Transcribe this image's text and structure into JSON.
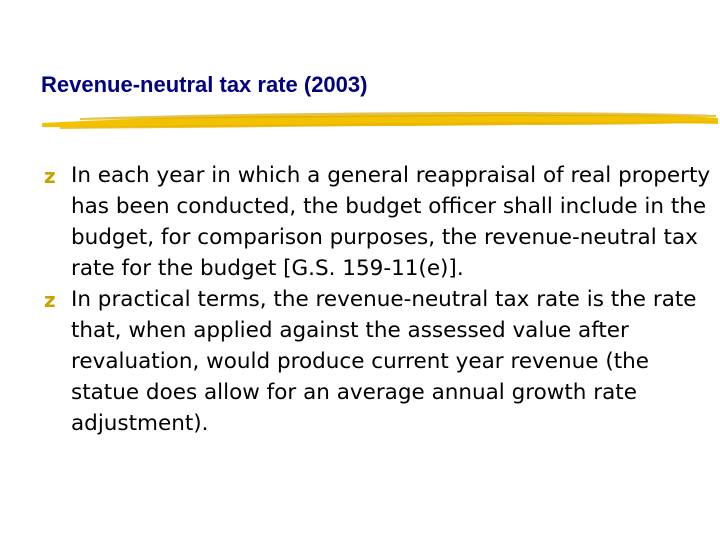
{
  "slide": {
    "title": "Revenue-neutral tax rate (2003)",
    "accent_color": "#f2c200",
    "title_color": "#000080",
    "bullet_icon": "z-bullet-icon",
    "bullet_glyph": "z",
    "bullets": [
      "In each year in which a general reappraisal of real property has been conducted, the budget officer shall include in the budget, for comparison purposes, the revenue-neutral tax rate for the budget [G.S. 159-11(e)].",
      "In practical terms, the revenue-neutral tax rate is the rate that, when applied against the assessed value after revaluation, would produce current year revenue (the statue does allow for an average annual growth rate adjustment)."
    ]
  }
}
